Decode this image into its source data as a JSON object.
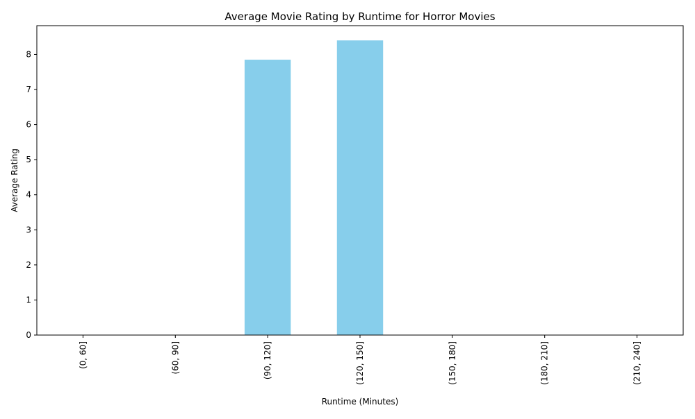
{
  "chart_data": {
    "type": "bar",
    "title": "Average Movie Rating by Runtime for Horror Movies",
    "xlabel": "Runtime (Minutes)",
    "ylabel": "Average Rating",
    "categories": [
      "(0, 60]",
      "(60, 90]",
      "(90, 120]",
      "(120, 150]",
      "(150, 180]",
      "(180, 210]",
      "(210, 240]"
    ],
    "values": [
      null,
      null,
      7.85,
      8.4,
      null,
      null,
      null
    ],
    "ylim": [
      0,
      8.82
    ],
    "yticks": [
      0,
      1,
      2,
      3,
      4,
      5,
      6,
      7,
      8
    ],
    "grid": false,
    "legend": "none",
    "bar_color": "#87CEEB"
  }
}
